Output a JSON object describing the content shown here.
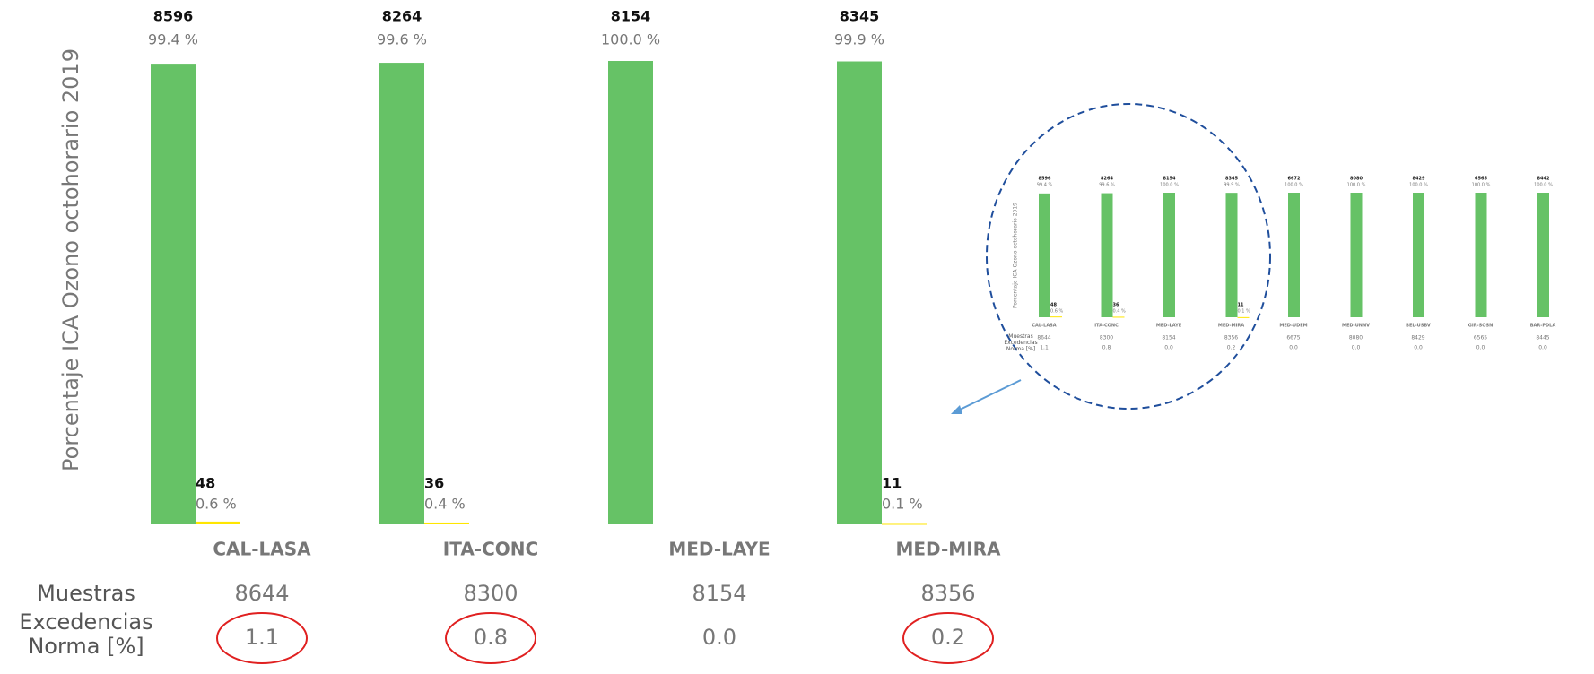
{
  "chart_data": [
    {
      "type": "bar",
      "ylabel": "Porcentaje ICA Ozono octohorario 2019",
      "categories": [
        "CAL-LASA",
        "ITA-CONC",
        "MED-LAYE",
        "MED-MIRA"
      ],
      "ylim": [
        0,
        100
      ],
      "series": [
        {
          "color": "#66c266",
          "values": [
            99.4,
            99.6,
            100.0,
            99.9
          ],
          "value_labels": [
            "99.4 %",
            "99.6 %",
            "100.0 %",
            "99.9 %"
          ],
          "counts": [
            8596,
            8264,
            8154,
            8345
          ]
        },
        {
          "color": "#ffe600",
          "values": [
            0.6,
            0.4,
            null,
            0.1
          ],
          "value_labels": [
            "0.6 %",
            "0.4 %",
            null,
            "0.1 %"
          ],
          "counts": [
            48,
            36,
            null,
            11
          ]
        }
      ],
      "table": {
        "row_labels": [
          "Muestras",
          "Excedencias Norma [%]"
        ],
        "rows": [
          [
            "8644",
            "8300",
            "8154",
            "8356"
          ],
          [
            "1.1",
            "0.8",
            "0.0",
            "0.2"
          ]
        ]
      }
    },
    {
      "type": "bar",
      "ylabel": "Porcentaje ICA Ozono octohorario 2019",
      "categories": [
        "CAL-LASA",
        "ITA-CONC",
        "MED-LAYE",
        "MED-MIRA",
        "MED-UDEM",
        "MED-UNNV",
        "BEL-USBV",
        "GIR-SOSN",
        "BAR-PDLA"
      ],
      "ylim": [
        0,
        100
      ],
      "series": [
        {
          "color": "#66c266",
          "values": [
            99.4,
            99.6,
            100.0,
            99.9,
            100.0,
            100.0,
            100.0,
            100.0,
            100.0
          ],
          "value_labels": [
            "99.4 %",
            "99.6 %",
            "100.0 %",
            "99.9 %",
            "100.0 %",
            "100.0 %",
            "100.0 %",
            "100.0 %",
            "100.0 %"
          ],
          "counts": [
            8596,
            8264,
            8154,
            8345,
            6672,
            8080,
            8429,
            6565,
            8442
          ]
        },
        {
          "color": "#ffe600",
          "values": [
            0.6,
            0.4,
            null,
            0.1,
            null,
            null,
            null,
            null,
            null
          ],
          "value_labels": [
            "0.6 %",
            "0.4 %",
            null,
            "0.1 %",
            null,
            null,
            null,
            null,
            null
          ],
          "counts": [
            48,
            36,
            null,
            11,
            null,
            null,
            null,
            null,
            null
          ]
        }
      ],
      "table": {
        "row_labels": [
          "Muestras",
          "Excedencias Norma [%]"
        ],
        "rows": [
          [
            "8644",
            "8300",
            "8154",
            "8356",
            "6675",
            "8080",
            "8429",
            "6565",
            "8445"
          ],
          [
            "1.1",
            "0.8",
            "0.0",
            "0.2",
            "0.0",
            "0.0",
            "0.0",
            "0.0",
            "0.0"
          ]
        ]
      }
    }
  ]
}
